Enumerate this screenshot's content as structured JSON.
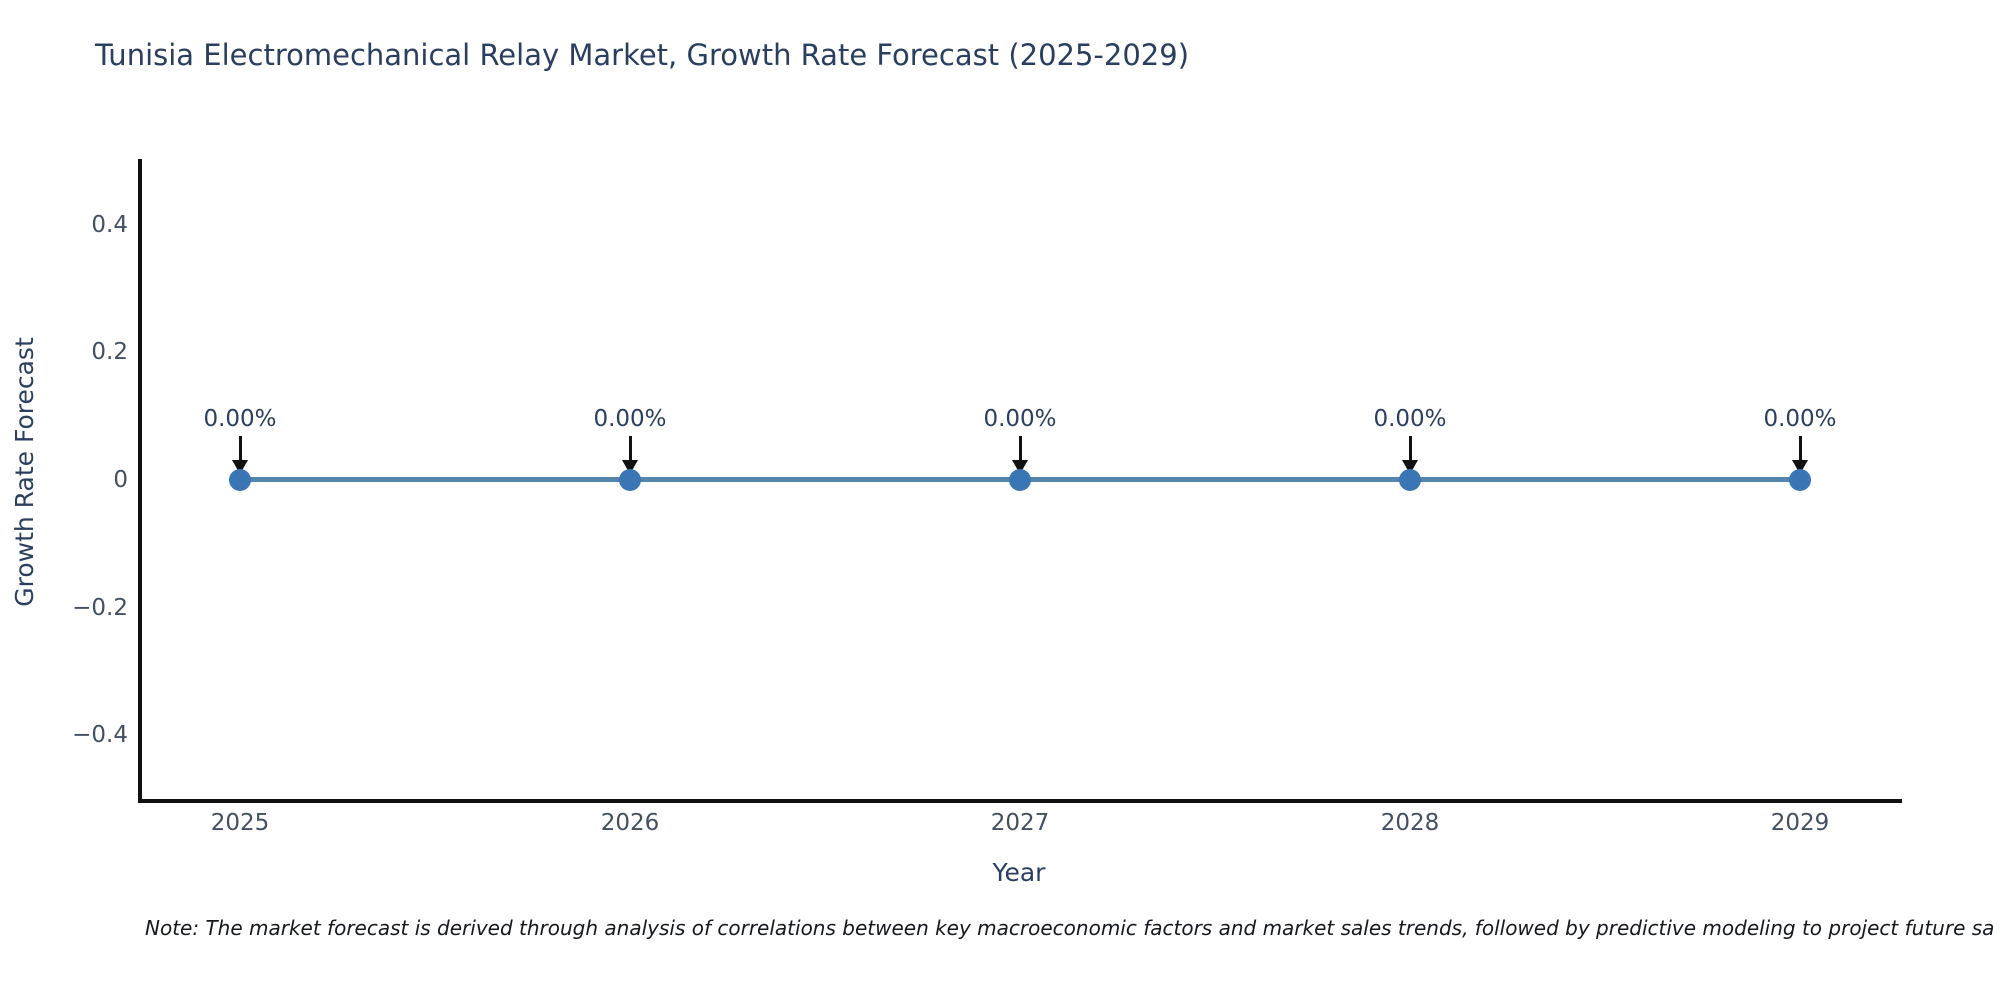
{
  "chart_data": {
    "type": "line",
    "title": "Tunisia Electromechanical Relay Market, Growth Rate Forecast (2025-2029)",
    "xlabel": "Year",
    "ylabel": "Growth Rate Forecast",
    "x": [
      2025,
      2026,
      2027,
      2028,
      2029
    ],
    "series": [
      {
        "name": "Growth Rate Forecast",
        "values": [
          0,
          0,
          0,
          0,
          0
        ]
      }
    ],
    "point_labels": [
      "0.00%",
      "0.00%",
      "0.00%",
      "0.00%",
      "0.00%"
    ],
    "xticks": [
      {
        "label": "2025",
        "value": 2025
      },
      {
        "label": "2026",
        "value": 2026
      },
      {
        "label": "2027",
        "value": 2027
      },
      {
        "label": "2028",
        "value": 2028
      },
      {
        "label": "2029",
        "value": 2029
      }
    ],
    "yticks": [
      {
        "label": "0.4",
        "value": 0.4
      },
      {
        "label": "0.2",
        "value": 0.2
      },
      {
        "label": "0",
        "value": 0
      },
      {
        "label": "−0.2",
        "value": -0.2
      },
      {
        "label": "−0.4",
        "value": -0.4
      }
    ],
    "ylim": [
      -0.5,
      0.505
    ],
    "xlim": [
      2024.74,
      2029.26
    ],
    "grid": false,
    "legend": false,
    "colors": {
      "line": "#5585ad",
      "marker": "#3a76b4",
      "axis": "#111111",
      "title": "#2a3f5f",
      "tick": "#425062",
      "annotation": "#2a3f5f"
    }
  },
  "note": {
    "text": "Note: The market forecast is derived through analysis of correlations between key macroeconomic factors and market sales trends, followed by predictive modeling to project future sa"
  }
}
